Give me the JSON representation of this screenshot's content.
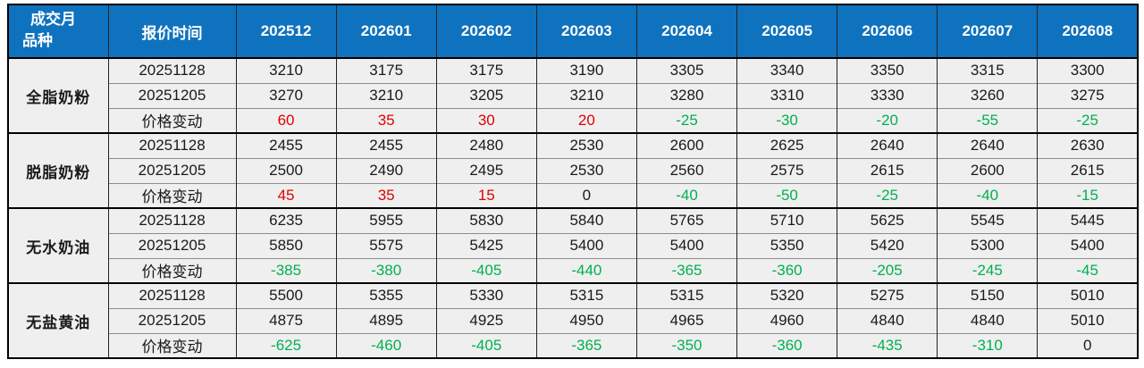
{
  "colors": {
    "header_bg": "#0f72be",
    "header_fg": "#ffffff",
    "row_bg": "#efefef",
    "positive_change": "#e00000",
    "negative_change": "#00b050",
    "neutral_text": "#1a1a1a"
  },
  "header": {
    "corner_line1": "成交月",
    "corner_line2": "品种",
    "quote_time_label": "报价时间",
    "months": [
      "202512",
      "202601",
      "202602",
      "202603",
      "202604",
      "202605",
      "202606",
      "202607",
      "202608"
    ]
  },
  "groups": [
    {
      "product": "全脂奶粉",
      "rows": [
        {
          "label": "20251128",
          "type": "price",
          "values": [
            3210,
            3175,
            3175,
            3190,
            3305,
            3340,
            3350,
            3315,
            3300
          ]
        },
        {
          "label": "20251205",
          "type": "price",
          "values": [
            3270,
            3210,
            3205,
            3210,
            3280,
            3310,
            3330,
            3260,
            3275
          ]
        },
        {
          "label": "价格变动",
          "type": "change",
          "values": [
            60,
            35,
            30,
            20,
            -25,
            -30,
            -20,
            -55,
            -25
          ]
        }
      ]
    },
    {
      "product": "脱脂奶粉",
      "rows": [
        {
          "label": "20251128",
          "type": "price",
          "values": [
            2455,
            2455,
            2480,
            2530,
            2600,
            2625,
            2640,
            2640,
            2630
          ]
        },
        {
          "label": "20251205",
          "type": "price",
          "values": [
            2500,
            2490,
            2495,
            2530,
            2560,
            2575,
            2615,
            2600,
            2615
          ]
        },
        {
          "label": "价格变动",
          "type": "change",
          "values": [
            45,
            35,
            15,
            0,
            -40,
            -50,
            -25,
            -40,
            -15
          ]
        }
      ]
    },
    {
      "product": "无水奶油",
      "rows": [
        {
          "label": "20251128",
          "type": "price",
          "values": [
            6235,
            5955,
            5830,
            5840,
            5765,
            5710,
            5625,
            5545,
            5445
          ]
        },
        {
          "label": "20251205",
          "type": "price",
          "values": [
            5850,
            5575,
            5425,
            5400,
            5400,
            5350,
            5420,
            5300,
            5400
          ]
        },
        {
          "label": "价格变动",
          "type": "change",
          "values": [
            -385,
            -380,
            -405,
            -440,
            -365,
            -360,
            -205,
            -245,
            -45
          ]
        }
      ]
    },
    {
      "product": "无盐黄油",
      "rows": [
        {
          "label": "20251128",
          "type": "price",
          "values": [
            5500,
            5355,
            5330,
            5315,
            5315,
            5320,
            5275,
            5150,
            5010
          ]
        },
        {
          "label": "20251205",
          "type": "price",
          "values": [
            4875,
            4895,
            4925,
            4950,
            4965,
            4960,
            4840,
            4840,
            5010
          ]
        },
        {
          "label": "价格变动",
          "type": "change",
          "values": [
            -625,
            -460,
            -405,
            -365,
            -350,
            -360,
            -435,
            -310,
            0
          ]
        }
      ]
    }
  ]
}
